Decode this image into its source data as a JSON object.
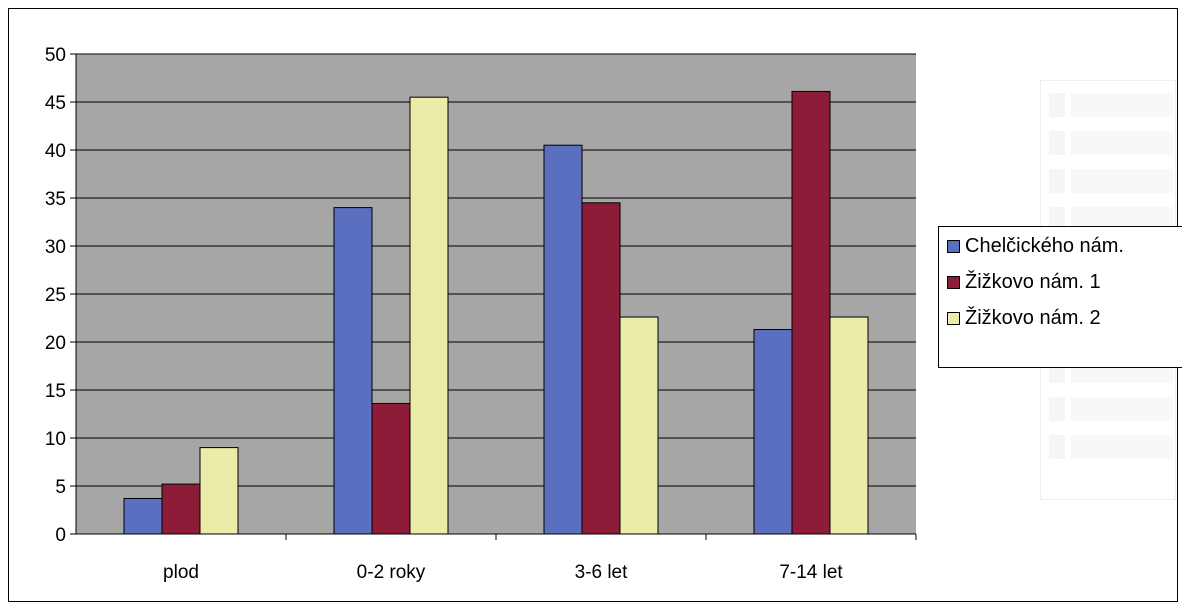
{
  "chart_data": {
    "type": "bar",
    "title": "",
    "xlabel": "",
    "ylabel": "",
    "categories": [
      "plod",
      "0-2 roky",
      "3-6 let",
      "7-14 let"
    ],
    "series": [
      {
        "name": "Chelčického nám.",
        "color": "#5a6fc0",
        "values": [
          3.7,
          34.0,
          40.5,
          21.3
        ]
      },
      {
        "name": "Žižkovo nám. 1",
        "color": "#8c1c38",
        "values": [
          5.2,
          13.6,
          34.5,
          46.1
        ]
      },
      {
        "name": "Žižkovo nám. 2",
        "color": "#ececaa",
        "values": [
          9.0,
          45.5,
          22.6,
          22.6
        ]
      }
    ],
    "yticks": [
      "0",
      "5",
      "10",
      "15",
      "20",
      "25",
      "30",
      "35",
      "40",
      "45",
      "50"
    ],
    "ylim": [
      0,
      50
    ],
    "grid": true,
    "legend_position": "right",
    "plot_background": "#a6a6a6"
  }
}
